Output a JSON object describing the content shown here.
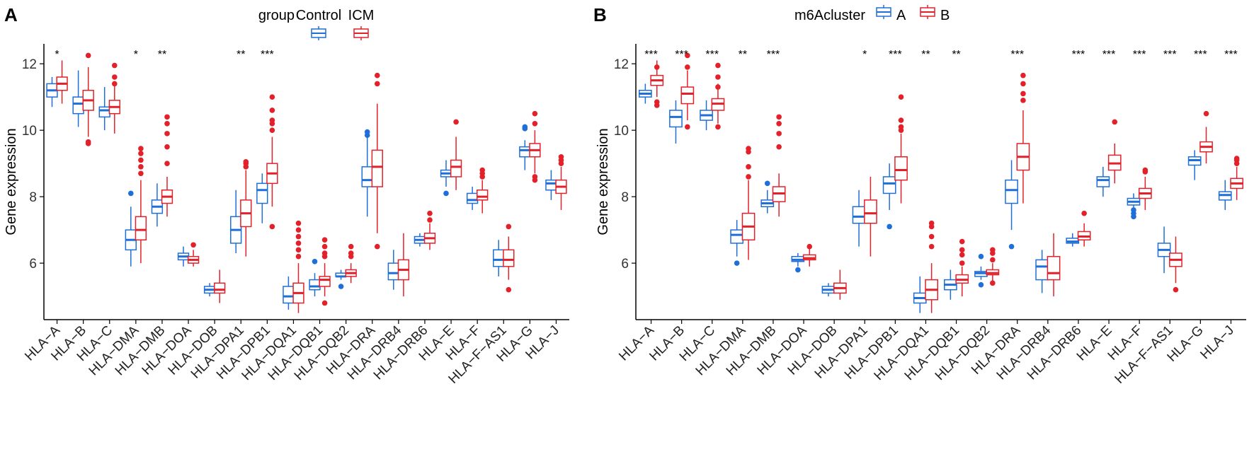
{
  "chart_data": [
    {
      "type": "boxplot",
      "panel_label": "A",
      "ylabel": "Gene expression",
      "ylim": [
        4.3,
        12.6
      ],
      "yticks": [
        6,
        8,
        10,
        12
      ],
      "legend": {
        "title": "group",
        "placement": "top",
        "entries": [
          {
            "name": "Control",
            "color": "#1F6FD8"
          },
          {
            "name": "ICM",
            "color": "#E3212A"
          }
        ]
      },
      "categories": [
        "HLA−A",
        "HLA−B",
        "HLA−C",
        "HLA−DMA",
        "HLA−DMB",
        "HLA−DOA",
        "HLA−DOB",
        "HLA−DPA1",
        "HLA−DPB1",
        "HLA−DQA1",
        "HLA−DQB1",
        "HLA−DQB2",
        "HLA−DRA",
        "HLA−DRB4",
        "HLA−DRB6",
        "HLA−E",
        "HLA−F",
        "HLA−F−AS1",
        "HLA−G",
        "HLA−J"
      ],
      "significance": [
        "*",
        "",
        "",
        "*",
        "**",
        "",
        "",
        "**",
        "***",
        "",
        "",
        "",
        "",
        "",
        "",
        "",
        "",
        "",
        "",
        ""
      ],
      "series": [
        {
          "name": "Control",
          "color": "#1F6FD8",
          "boxes": [
            [
              10.7,
              11.0,
              11.2,
              11.4,
              11.6
            ],
            [
              10.1,
              10.5,
              10.8,
              11.0,
              11.8
            ],
            [
              10.0,
              10.4,
              10.6,
              10.7,
              11.3
            ],
            [
              5.9,
              6.4,
              6.7,
              7.0,
              7.7
            ],
            [
              7.1,
              7.5,
              7.7,
              7.9,
              8.4
            ],
            [
              5.9,
              6.1,
              6.2,
              6.3,
              6.5
            ],
            [
              5.0,
              5.1,
              5.2,
              5.3,
              5.4
            ],
            [
              6.3,
              6.6,
              7.0,
              7.4,
              8.2
            ],
            [
              7.2,
              7.8,
              8.2,
              8.4,
              8.7
            ],
            [
              4.6,
              4.8,
              5.0,
              5.3,
              5.6
            ],
            [
              5.0,
              5.2,
              5.3,
              5.5,
              5.7
            ],
            [
              5.5,
              5.6,
              5.6,
              5.7,
              5.8
            ],
            [
              7.4,
              8.3,
              8.5,
              8.9,
              9.8
            ],
            [
              5.2,
              5.5,
              5.7,
              6.0,
              6.4
            ],
            [
              6.5,
              6.6,
              6.7,
              6.8,
              6.9
            ],
            [
              8.3,
              8.6,
              8.7,
              8.8,
              9.1
            ],
            [
              7.6,
              7.8,
              7.9,
              8.1,
              8.3
            ],
            [
              5.6,
              5.9,
              6.1,
              6.4,
              6.7
            ],
            [
              8.8,
              9.2,
              9.4,
              9.5,
              9.7
            ],
            [
              7.9,
              8.2,
              8.4,
              8.5,
              8.8
            ]
          ],
          "outliers": [
            [],
            [],
            [],
            [
              8.1
            ],
            [],
            [],
            [],
            [],
            [],
            [],
            [
              6.05
            ],
            [
              5.3
            ],
            [
              9.85,
              9.95
            ],
            [],
            [],
            [
              8.1
            ],
            [],
            [],
            [
              10.05,
              10.1
            ],
            []
          ]
        },
        {
          "name": "ICM",
          "color": "#E3212A",
          "boxes": [
            [
              10.8,
              11.2,
              11.4,
              11.6,
              12.1
            ],
            [
              9.8,
              10.6,
              10.9,
              11.2,
              11.9
            ],
            [
              9.9,
              10.5,
              10.7,
              10.9,
              11.4
            ],
            [
              6.0,
              6.7,
              7.0,
              7.4,
              8.5
            ],
            [
              7.4,
              7.8,
              8.0,
              8.2,
              8.6
            ],
            [
              5.9,
              6.0,
              6.1,
              6.2,
              6.4
            ],
            [
              4.8,
              5.1,
              5.2,
              5.4,
              5.8
            ],
            [
              6.2,
              7.1,
              7.5,
              7.9,
              8.8
            ],
            [
              7.7,
              8.4,
              8.7,
              9.0,
              9.8
            ],
            [
              4.5,
              4.8,
              5.1,
              5.4,
              6.0
            ],
            [
              5.0,
              5.3,
              5.5,
              5.6,
              6.0
            ],
            [
              5.4,
              5.6,
              5.7,
              5.8,
              6.0
            ],
            [
              6.9,
              8.3,
              8.9,
              9.4,
              10.8
            ],
            [
              5.0,
              5.5,
              5.8,
              6.1,
              6.9
            ],
            [
              6.4,
              6.6,
              6.75,
              6.9,
              7.2
            ],
            [
              8.2,
              8.6,
              8.9,
              9.1,
              9.8
            ],
            [
              7.5,
              7.9,
              8.0,
              8.2,
              8.5
            ],
            [
              5.5,
              5.9,
              6.1,
              6.4,
              6.8
            ],
            [
              8.7,
              9.2,
              9.4,
              9.6,
              10.0
            ],
            [
              7.6,
              8.1,
              8.3,
              8.5,
              8.9
            ]
          ],
          "outliers": [
            [],
            [
              12.25,
              9.6,
              9.65
            ],
            [
              11.95,
              11.6,
              11.4
            ],
            [
              9.45,
              9.3,
              9.1,
              8.9,
              8.7
            ],
            [
              10.4,
              10.2,
              9.9,
              9.5,
              9.0
            ],
            [
              6.55
            ],
            [],
            [
              9.05,
              9.0,
              8.9
            ],
            [
              11.0,
              10.6,
              10.3,
              10.2,
              10.0,
              7.1
            ],
            [
              7.2,
              7.0,
              6.8,
              6.6,
              6.4,
              6.2
            ],
            [
              6.7,
              6.5,
              6.3,
              6.2,
              4.8
            ],
            [
              6.5,
              6.3,
              6.2
            ],
            [
              11.65,
              11.4,
              6.5
            ],
            [],
            [
              7.5,
              7.3
            ],
            [
              10.25
            ],
            [
              8.8,
              8.7,
              8.6
            ],
            [
              7.1,
              5.2
            ],
            [
              10.5,
              10.2,
              8.6,
              8.5
            ],
            [
              9.2,
              9.1,
              9.0
            ]
          ]
        }
      ]
    },
    {
      "type": "boxplot",
      "panel_label": "B",
      "ylabel": "Gene expression",
      "ylim": [
        4.3,
        12.6
      ],
      "yticks": [
        6,
        8,
        10,
        12
      ],
      "legend": {
        "title": "m6Acluster",
        "placement": "top",
        "entries": [
          {
            "name": "A",
            "color": "#1F6FD8"
          },
          {
            "name": "B",
            "color": "#E3212A"
          }
        ]
      },
      "categories": [
        "HLA−A",
        "HLA−B",
        "HLA−C",
        "HLA−DMA",
        "HLA−DMB",
        "HLA−DOA",
        "HLA−DOB",
        "HLA−DPA1",
        "HLA−DPB1",
        "HLA−DQA1",
        "HLA−DQB1",
        "HLA−DQB2",
        "HLA−DRA",
        "HLA−DRB4",
        "HLA−DRB6",
        "HLA−E",
        "HLA−F",
        "HLA−F−AS1",
        "HLA−G",
        "HLA−J"
      ],
      "significance": [
        "***",
        "***",
        "***",
        "**",
        "***",
        "",
        "",
        "*",
        "***",
        "**",
        "**",
        "",
        "***",
        "",
        "***",
        "***",
        "***",
        "***",
        "***",
        "***"
      ],
      "series": [
        {
          "name": "A",
          "color": "#1F6FD8",
          "boxes": [
            [
              10.8,
              11.0,
              11.1,
              11.2,
              11.4
            ],
            [
              9.6,
              10.1,
              10.4,
              10.6,
              10.9
            ],
            [
              10.0,
              10.3,
              10.45,
              10.6,
              10.9
            ],
            [
              6.2,
              6.6,
              6.85,
              7.0,
              7.3
            ],
            [
              7.5,
              7.7,
              7.8,
              7.9,
              8.2
            ],
            [
              5.9,
              6.05,
              6.1,
              6.2,
              6.3
            ],
            [
              5.0,
              5.1,
              5.2,
              5.3,
              5.4
            ],
            [
              6.5,
              7.2,
              7.4,
              7.7,
              8.2
            ],
            [
              7.6,
              8.1,
              8.4,
              8.6,
              9.0
            ],
            [
              4.5,
              4.8,
              4.95,
              5.1,
              5.6
            ],
            [
              4.9,
              5.2,
              5.35,
              5.5,
              5.8
            ],
            [
              5.5,
              5.6,
              5.7,
              5.75,
              5.9
            ],
            [
              7.0,
              7.8,
              8.2,
              8.5,
              9.1
            ],
            [
              5.1,
              5.5,
              5.9,
              6.1,
              6.4
            ],
            [
              6.5,
              6.6,
              6.65,
              6.75,
              6.9
            ],
            [
              8.0,
              8.3,
              8.5,
              8.6,
              8.9
            ],
            [
              7.5,
              7.75,
              7.85,
              7.95,
              8.1
            ],
            [
              5.7,
              6.2,
              6.4,
              6.6,
              7.1
            ],
            [
              8.5,
              8.95,
              9.1,
              9.2,
              9.4
            ],
            [
              7.6,
              7.9,
              8.05,
              8.15,
              8.5
            ]
          ],
          "outliers": [
            [],
            [],
            [],
            [
              6.0
            ],
            [
              8.4
            ],
            [
              5.8
            ],
            [],
            [],
            [
              7.1
            ],
            [],
            [],
            [
              6.2,
              5.35
            ],
            [
              6.5
            ],
            [],
            [],
            [],
            [
              7.4,
              7.5,
              7.6
            ],
            [],
            [],
            []
          ]
        },
        {
          "name": "B",
          "color": "#E3212A",
          "boxes": [
            [
              11.0,
              11.35,
              11.5,
              11.65,
              12.1
            ],
            [
              10.3,
              10.8,
              11.1,
              11.3,
              11.8
            ],
            [
              10.2,
              10.6,
              10.8,
              10.95,
              11.4
            ],
            [
              6.1,
              6.7,
              7.1,
              7.5,
              8.5
            ],
            [
              7.4,
              7.85,
              8.1,
              8.3,
              8.7
            ],
            [
              5.9,
              6.1,
              6.15,
              6.25,
              6.5
            ],
            [
              4.9,
              5.1,
              5.25,
              5.4,
              5.8
            ],
            [
              6.2,
              7.2,
              7.5,
              7.9,
              8.6
            ],
            [
              7.8,
              8.5,
              8.8,
              9.2,
              9.9
            ],
            [
              4.5,
              4.9,
              5.2,
              5.5,
              6.0
            ],
            [
              5.0,
              5.4,
              5.5,
              5.65,
              5.9
            ],
            [
              5.4,
              5.65,
              5.7,
              5.8,
              6.0
            ],
            [
              7.8,
              8.8,
              9.2,
              9.6,
              10.6
            ],
            [
              5.0,
              5.5,
              5.7,
              6.2,
              6.9
            ],
            [
              6.5,
              6.7,
              6.8,
              6.95,
              7.2
            ],
            [
              8.4,
              8.8,
              9.0,
              9.25,
              9.6
            ],
            [
              7.6,
              7.95,
              8.1,
              8.25,
              8.6
            ],
            [
              5.4,
              5.9,
              6.1,
              6.3,
              6.8
            ],
            [
              9.0,
              9.35,
              9.5,
              9.65,
              10.1
            ],
            [
              7.9,
              8.25,
              8.4,
              8.55,
              8.9
            ]
          ],
          "outliers": [
            [
              10.75,
              10.85,
              11.9
            ],
            [
              12.25,
              11.9,
              10.1
            ],
            [
              11.95,
              11.6,
              11.3,
              10.1
            ],
            [
              9.45,
              9.35,
              8.9,
              8.6
            ],
            [
              10.4,
              10.2,
              9.9,
              9.5
            ],
            [
              6.5
            ],
            [],
            [],
            [
              11.0,
              10.3,
              10.1,
              10.0
            ],
            [
              7.2,
              7.1,
              6.8,
              6.5
            ],
            [
              6.65,
              6.4,
              6.25,
              6.0
            ],
            [
              6.4,
              6.3,
              6.1,
              5.4
            ],
            [
              11.65,
              11.4,
              11.1,
              10.9
            ],
            [],
            [
              7.5
            ],
            [
              10.25
            ],
            [
              8.8,
              8.75
            ],
            [
              5.2
            ],
            [
              10.5
            ],
            [
              9.15,
              9.1,
              9.0
            ]
          ]
        }
      ]
    }
  ]
}
